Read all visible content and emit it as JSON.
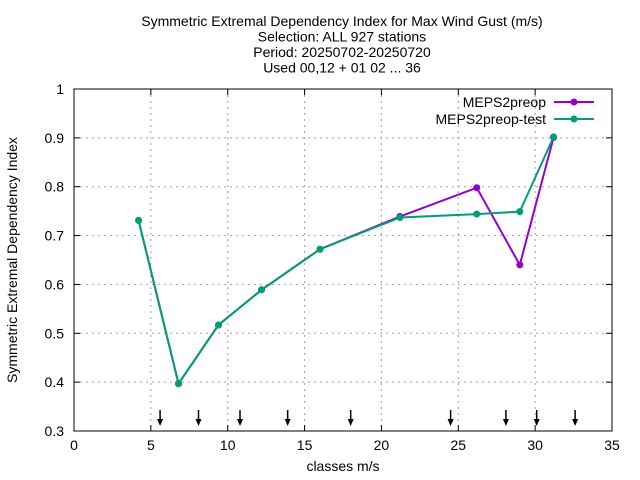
{
  "chart_data": {
    "type": "line",
    "title_lines": [
      "Symmetric Extremal Dependency Index  for Max Wind Gust (m/s)",
      "Selection: ALL    927 stations",
      "Period: 20250702-20250720",
      "Used 00,12 + 01 02 ... 36"
    ],
    "xlabel": "classes m/s",
    "ylabel": "Symmetric Extremal Dependency Index",
    "xlim": [
      0,
      35
    ],
    "ylim": [
      0.3,
      1.0
    ],
    "xticks": [
      0,
      5,
      10,
      15,
      20,
      25,
      30,
      35
    ],
    "yticks": [
      0.3,
      0.4,
      0.5,
      0.6,
      0.7,
      0.8,
      0.9,
      1.0
    ],
    "ytick_labels": [
      "0.3",
      "0.4",
      "0.5",
      "0.6",
      "0.7",
      "0.8",
      "0.9",
      "1"
    ],
    "grid": true,
    "legend_position": "top-right",
    "class_markers": [
      5.6,
      8.1,
      10.8,
      13.9,
      18.0,
      24.5,
      28.1,
      30.1,
      32.6
    ],
    "series": [
      {
        "name": "MEPS2preop",
        "color": "#9400d3",
        "x": [
          4.2,
          6.8,
          9.4,
          12.2,
          16.0,
          21.2,
          26.2,
          29.0,
          31.2
        ],
        "y": [
          0.731,
          0.397,
          0.517,
          0.589,
          0.672,
          0.739,
          0.798,
          0.64,
          0.901
        ]
      },
      {
        "name": "MEPS2preop-test",
        "color": "#009e73",
        "x": [
          4.2,
          6.8,
          9.4,
          12.2,
          16.0,
          21.2,
          26.2,
          29.0,
          31.2
        ],
        "y": [
          0.731,
          0.397,
          0.517,
          0.589,
          0.672,
          0.737,
          0.744,
          0.749,
          0.902
        ]
      }
    ]
  }
}
